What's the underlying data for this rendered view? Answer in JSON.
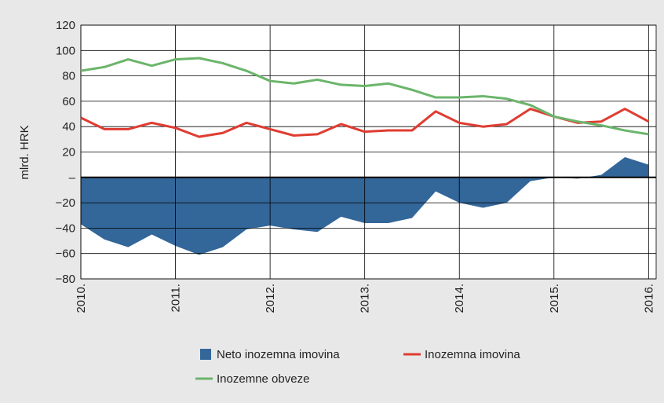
{
  "chart_data": {
    "type": "line",
    "y_label": "mlrd. HRK",
    "x": [
      2010,
      2010.25,
      2010.5,
      2010.75,
      2011,
      2011.25,
      2011.5,
      2011.75,
      2012,
      2012.25,
      2012.5,
      2012.75,
      2013,
      2013.25,
      2013.5,
      2013.75,
      2014,
      2014.25,
      2014.5,
      2014.75,
      2015,
      2015.25,
      2015.5,
      2015.75,
      2016
    ],
    "series": [
      {
        "name": "Neto inozemna imovina",
        "type": "area",
        "color": "#336699",
        "values": [
          -37,
          -49,
          -55,
          -45,
          -54,
          -61,
          -55,
          -41,
          -38,
          -41,
          -43,
          -31,
          -36,
          -36,
          -32,
          -11,
          -20,
          -24,
          -20,
          -3,
          0,
          -1,
          2,
          16,
          10
        ]
      },
      {
        "name": "Inozemna imovina",
        "type": "line",
        "color": "#e03c31",
        "values": [
          47,
          38,
          38,
          43,
          39,
          32,
          35,
          43,
          38,
          33,
          34,
          42,
          36,
          37,
          37,
          52,
          43,
          40,
          42,
          54,
          48,
          43,
          44,
          54,
          44
        ]
      },
      {
        "name": "Inozemne obveze",
        "type": "line",
        "color": "#6bb56b",
        "values": [
          84,
          87,
          93,
          88,
          93,
          94,
          90,
          84,
          76,
          74,
          77,
          73,
          72,
          74,
          69,
          63,
          63,
          64,
          62,
          57,
          48,
          44,
          41,
          37,
          34
        ]
      }
    ],
    "xlim": [
      2010,
      2016.08
    ],
    "xticks": [
      {
        "value": 2010,
        "label": "2010."
      },
      {
        "value": 2011,
        "label": "2011."
      },
      {
        "value": 2012,
        "label": "2012."
      },
      {
        "value": 2013,
        "label": "2013."
      },
      {
        "value": 2014,
        "label": "2014."
      },
      {
        "value": 2015,
        "label": "2015."
      },
      {
        "value": 2016,
        "label": "2016."
      }
    ],
    "ylim": [
      -80,
      120
    ],
    "yticks": [
      {
        "value": -80,
        "label": "−80"
      },
      {
        "value": -60,
        "label": "−60"
      },
      {
        "value": -40,
        "label": "−40"
      },
      {
        "value": -20,
        "label": "−20"
      },
      {
        "value": 0,
        "label": "–"
      },
      20,
      40,
      60,
      80,
      100,
      120
    ],
    "grid": true
  }
}
